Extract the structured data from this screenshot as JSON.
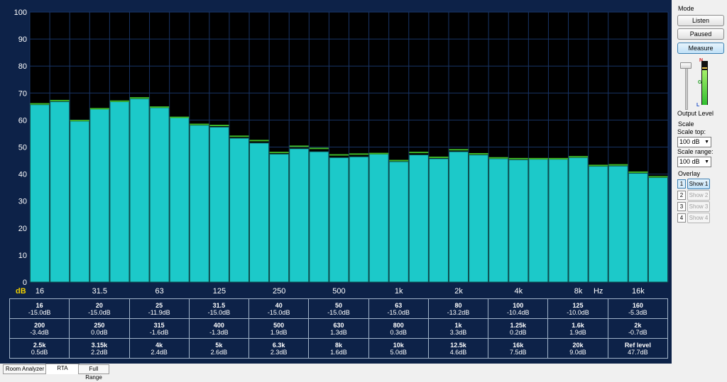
{
  "chart_data": {
    "type": "bar",
    "ylabel": "dB",
    "xunit": "Hz",
    "ylim": [
      0,
      100
    ],
    "y_ticks": [
      "0",
      "10",
      "20",
      "30",
      "40",
      "50",
      "60",
      "70",
      "80",
      "90",
      "100"
    ],
    "x_ticks": [
      "16",
      "31.5",
      "63",
      "125",
      "250",
      "500",
      "1k",
      "2k",
      "4k",
      "8k",
      "16k"
    ],
    "categories": [
      "16",
      "20",
      "25",
      "31.5",
      "40",
      "50",
      "63",
      "80",
      "100",
      "125",
      "160",
      "200",
      "250",
      "315",
      "400",
      "500",
      "630",
      "800",
      "1k",
      "1.25k",
      "1.6k",
      "2k",
      "2.5k",
      "3.15k",
      "4k",
      "5k",
      "6.3k",
      "8k",
      "10k",
      "12.5k",
      "16k",
      "20k"
    ],
    "values": [
      65.7,
      66.8,
      59.6,
      64.1,
      66.8,
      67.9,
      64.6,
      60.9,
      58.1,
      57.4,
      53.3,
      51.5,
      47.4,
      49.4,
      48.3,
      46.1,
      46.4,
      47.4,
      44.6,
      47.1,
      45.7,
      48.3,
      47.1,
      45.7,
      45.3,
      45.5,
      45.5,
      46.1,
      42.9,
      43.0,
      40.3,
      38.7
    ],
    "peaks": [
      66.0,
      67.2,
      59.8,
      64.2,
      67.0,
      68.2,
      64.8,
      61.0,
      58.4,
      58.0,
      54.0,
      52.4,
      48.0,
      50.3,
      49.5,
      47.1,
      47.4,
      47.6,
      45.0,
      48.0,
      46.2,
      49.0,
      47.5,
      46.0,
      45.7,
      45.7,
      45.7,
      46.4,
      43.2,
      43.4,
      40.7,
      39.0
    ],
    "grid": true,
    "colors": {
      "background": "#000000",
      "bar": "#1cc9c9",
      "bar_edge": "#0d4d4d",
      "peak": "#3fb828",
      "grid": "#183466",
      "axis_text": "#ffffff",
      "db_label": "#f0d000",
      "panel": "#0d2248"
    }
  },
  "table": {
    "rows": [
      [
        {
          "freq": "16",
          "val": "-15.0dB"
        },
        {
          "freq": "20",
          "val": "-15.0dB"
        },
        {
          "freq": "25",
          "val": "-11.9dB"
        },
        {
          "freq": "31.5",
          "val": "-15.0dB"
        },
        {
          "freq": "40",
          "val": "-15.0dB"
        },
        {
          "freq": "50",
          "val": "-15.0dB"
        },
        {
          "freq": "63",
          "val": "-15.0dB"
        },
        {
          "freq": "80",
          "val": "-13.2dB"
        },
        {
          "freq": "100",
          "val": "-10.4dB"
        },
        {
          "freq": "125",
          "val": "-10.0dB"
        },
        {
          "freq": "160",
          "val": "-5.3dB"
        }
      ],
      [
        {
          "freq": "200",
          "val": "-3.4dB"
        },
        {
          "freq": "250",
          "val": "0.0dB"
        },
        {
          "freq": "315",
          "val": "-1.6dB"
        },
        {
          "freq": "400",
          "val": "-1.3dB"
        },
        {
          "freq": "500",
          "val": "1.9dB"
        },
        {
          "freq": "630",
          "val": "1.3dB"
        },
        {
          "freq": "800",
          "val": "0.3dB"
        },
        {
          "freq": "1k",
          "val": "3.3dB"
        },
        {
          "freq": "1.25k",
          "val": "0.2dB"
        },
        {
          "freq": "1.6k",
          "val": "1.9dB"
        },
        {
          "freq": "2k",
          "val": "-0.7dB"
        }
      ],
      [
        {
          "freq": "2.5k",
          "val": "0.5dB"
        },
        {
          "freq": "3.15k",
          "val": "2.2dB"
        },
        {
          "freq": "4k",
          "val": "2.4dB"
        },
        {
          "freq": "5k",
          "val": "2.6dB"
        },
        {
          "freq": "6.3k",
          "val": "2.3dB"
        },
        {
          "freq": "8k",
          "val": "1.6dB"
        },
        {
          "freq": "10k",
          "val": "5.0dB"
        },
        {
          "freq": "12.5k",
          "val": "4.6dB"
        },
        {
          "freq": "16k",
          "val": "7.5dB"
        },
        {
          "freq": "20k",
          "val": "9.0dB"
        },
        {
          "freq": "Ref level",
          "val": "47.7dB"
        }
      ]
    ]
  },
  "side": {
    "mode_label": "Mode",
    "listen": "Listen",
    "paused": "Paused",
    "measure": "Measure",
    "output_level_label": "Output Level",
    "output_level": 0.82,
    "meter_labels": {
      "n": "N",
      "g": "G",
      "l": "L"
    },
    "scale_label": "Scale",
    "scale_top_label": "Scale top:",
    "scale_top_value": "100 dB",
    "scale_range_label": "Scale range:",
    "scale_range_value": "100 dB",
    "overlay_label": "Overlay",
    "overlays": [
      {
        "num": "1",
        "label": "Show 1",
        "enabled": true
      },
      {
        "num": "2",
        "label": "Show 2",
        "enabled": false
      },
      {
        "num": "3",
        "label": "Show 3",
        "enabled": false
      },
      {
        "num": "4",
        "label": "Show 4",
        "enabled": false
      }
    ]
  },
  "tabs": [
    "Room Analyzer",
    "RTA",
    "Full Range"
  ],
  "active_tab": "RTA"
}
